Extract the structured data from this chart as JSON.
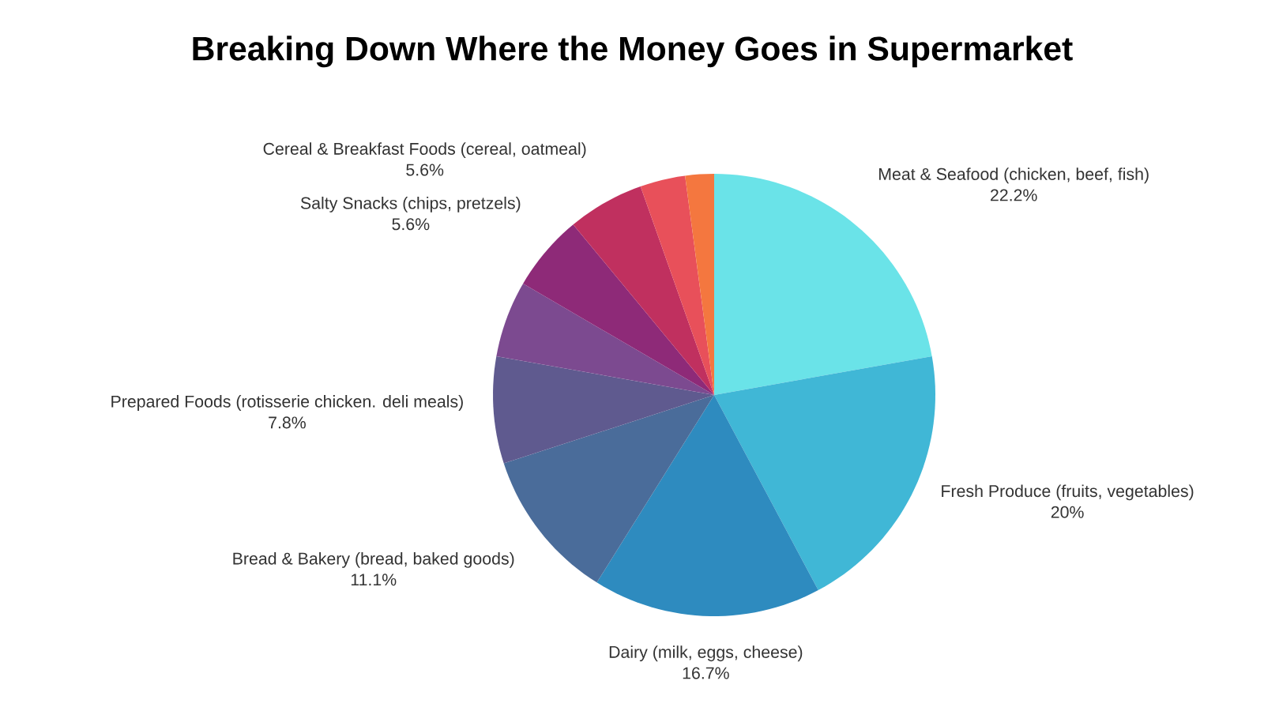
{
  "chart_data": {
    "type": "pie",
    "title": "Breaking Down Where the Money Goes in Supermarket",
    "categories": [
      "Meat & Seafood (chicken, beef, fish)",
      "Fresh Produce (fruits, vegetables)",
      "Dairy (milk, eggs, cheese)",
      "Bread & Bakery (bread, baked goods)",
      "Prepared Foods (rotisserie chicken. deli meals)",
      null,
      "Salty Snacks (chips, pretzels)",
      "Cereal & Breakfast Foods (cereal, oatmeal)",
      null,
      null
    ],
    "values": [
      22.2,
      20,
      16.7,
      11.1,
      7.8,
      5.6,
      5.6,
      5.6,
      3.3,
      2.1
    ],
    "value_labels": [
      "22.2%",
      "20%",
      "16.7%",
      "11.1%",
      "7.8%",
      null,
      "5.6%",
      "5.6%",
      null,
      null
    ],
    "colors": [
      "#6ae3e8",
      "#40b7d6",
      "#2e8bbf",
      "#4a6c9a",
      "#5f5a8f",
      "#7c4a90",
      "#8e2a78",
      "#c0305f",
      "#e8505a",
      "#f4773f"
    ]
  }
}
